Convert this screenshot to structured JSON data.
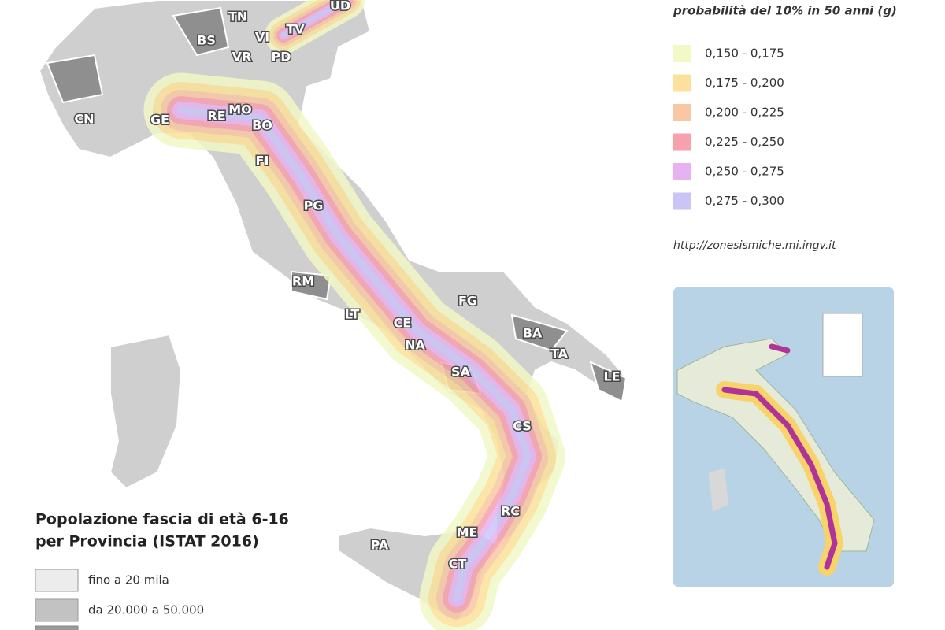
{
  "seismic_legend": {
    "title": "probabilità del 10% in 50 anni (g)",
    "items": [
      {
        "label": "0,150 - 0,175",
        "color": "#f2f8c6"
      },
      {
        "label": "0,175 - 0,200",
        "color": "#fbe19b"
      },
      {
        "label": "0,200 - 0,225",
        "color": "#f8c7a3"
      },
      {
        "label": "0,225 - 0,250",
        "color": "#f6a1ad"
      },
      {
        "label": "0,250 - 0,275",
        "color": "#e6b2f1"
      },
      {
        "label": "0,275 - 0,300",
        "color": "#c9c6f6"
      }
    ]
  },
  "source_url": "http://zonesismiche.mi.ingv.it",
  "population_legend": {
    "title_lines": [
      "Popolazione fascia di età 6-16",
      "per Provincia (ISTAT 2016)"
    ],
    "items": [
      {
        "label": "fino a 20 mila",
        "color": "#ececec"
      },
      {
        "label": "da 20.000 a 50.000",
        "color": "#c2c2c2"
      }
    ]
  },
  "provinces": [
    "TN",
    "UD",
    "BS",
    "VI",
    "TV",
    "VR",
    "PD",
    "CN",
    "GE",
    "RE",
    "MO",
    "BO",
    "FI",
    "PG",
    "RM",
    "FG",
    "LT",
    "CE",
    "NA",
    "BA",
    "TA",
    "SA",
    "LE",
    "CS",
    "RC",
    "ME",
    "PA",
    "CT"
  ]
}
